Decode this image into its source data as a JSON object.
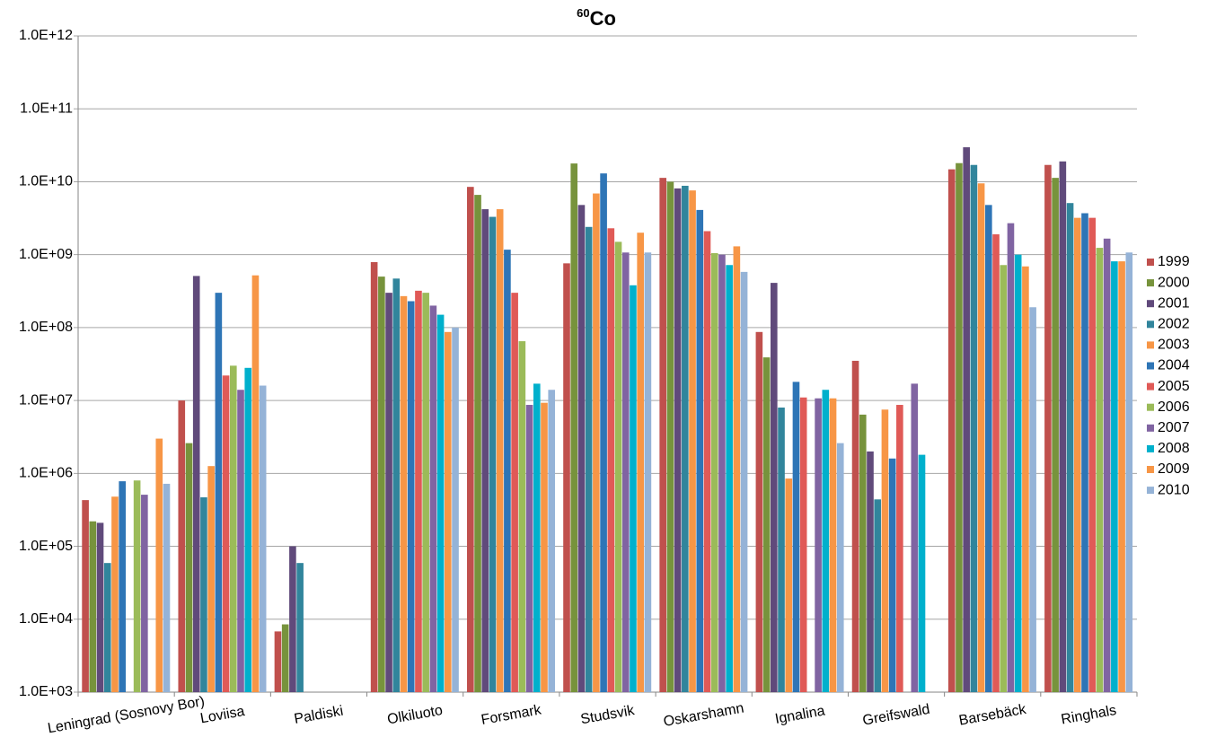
{
  "chart_data": {
    "type": "bar",
    "title_superscript": "60",
    "title": "Co",
    "log_scale": true,
    "grid": true,
    "legend": "right",
    "categories": [
      "Leningrad (Sosnovy Bor)",
      "Loviisa",
      "Paldiski",
      "Olkiluoto",
      "Forsmark",
      "Studsvik",
      "Oskarshamn",
      "Ignalina",
      "Greifswald",
      "Barsebäck",
      "Ringhals"
    ],
    "ylim": [
      1000,
      1000000000000
    ],
    "yticks": [
      {
        "value": 1000,
        "label": "1.0E+03"
      },
      {
        "value": 10000,
        "label": "1.0E+04"
      },
      {
        "value": 100000,
        "label": "1.0E+05"
      },
      {
        "value": 1000000,
        "label": "1.0E+06"
      },
      {
        "value": 10000000,
        "label": "1.0E+07"
      },
      {
        "value": 100000000,
        "label": "1.0E+08"
      },
      {
        "value": 1000000000,
        "label": "1.0E+09"
      },
      {
        "value": 10000000000,
        "label": "1.0E+10"
      },
      {
        "value": 100000000000,
        "label": "1.0E+11"
      },
      {
        "value": 1000000000000,
        "label": "1.0E+12"
      }
    ],
    "series": [
      {
        "name": "1999",
        "color": "#c0504d",
        "values": [
          430000,
          10000000,
          6800,
          790000000,
          8500000000,
          760000000,
          11300000000,
          87000000,
          35000000,
          14800000000,
          17000000000
        ]
      },
      {
        "name": "2000",
        "color": "#77933c",
        "values": [
          220000,
          2600000,
          8500,
          500000000,
          6600000000,
          17800000000,
          10000000000,
          39000000,
          6400000,
          18000000000,
          11300000000
        ]
      },
      {
        "name": "2001",
        "color": "#604a7b",
        "values": [
          210000,
          510000000,
          100000,
          300000000,
          4200000000,
          4800000000,
          8100000000,
          410000000,
          2000000,
          29700000000,
          19000000000
        ]
      },
      {
        "name": "2002",
        "color": "#31859c",
        "values": [
          59000,
          470000,
          59000,
          470000000,
          3300000000,
          2400000000,
          8800000000,
          8000000,
          440000,
          17000000000,
          5100000000
        ]
      },
      {
        "name": "2003",
        "color": "#f79646",
        "values": [
          480000,
          1260000,
          null,
          270000000,
          4200000000,
          6900000000,
          7600000000,
          850000,
          7500000,
          9500000000,
          3200000000
        ]
      },
      {
        "name": "2004",
        "color": "#2e75b6",
        "values": [
          780000,
          300000000,
          null,
          230000000,
          1170000000,
          13000000000,
          4100000000,
          18000000,
          1600000,
          4800000000,
          3700000000
        ]
      },
      {
        "name": "2005",
        "color": "#e05a57",
        "values": [
          null,
          22000000,
          null,
          320000000,
          300000000,
          2300000000,
          2100000000,
          11000000,
          8700000,
          1900000000,
          3200000000
        ]
      },
      {
        "name": "2006",
        "color": "#9bbb59",
        "values": [
          800000,
          30000000,
          null,
          300000000,
          65000000,
          1500000000,
          1050000000,
          null,
          null,
          720000000,
          1240000000
        ]
      },
      {
        "name": "2007",
        "color": "#8064a2",
        "values": [
          510000,
          14000000,
          null,
          200000000,
          8700000,
          1070000000,
          1000000000,
          10700000,
          17000000,
          2700000000,
          1660000000
        ]
      },
      {
        "name": "2008",
        "color": "#00b0cc",
        "values": [
          null,
          28000000,
          null,
          150000000,
          17000000,
          380000000,
          720000000,
          14000000,
          1800000,
          1000000000,
          810000000
        ]
      },
      {
        "name": "2009",
        "color": "#f79646",
        "values": [
          3000000,
          520000000,
          null,
          87000000,
          9300000,
          2000000000,
          1300000000,
          10700000,
          null,
          690000000,
          810000000
        ]
      },
      {
        "name": "2010",
        "color": "#95b3d7",
        "values": [
          720000,
          16000000,
          null,
          100000000,
          14000000,
          1070000000,
          580000000,
          2600000,
          null,
          190000000,
          1070000000
        ]
      }
    ]
  }
}
